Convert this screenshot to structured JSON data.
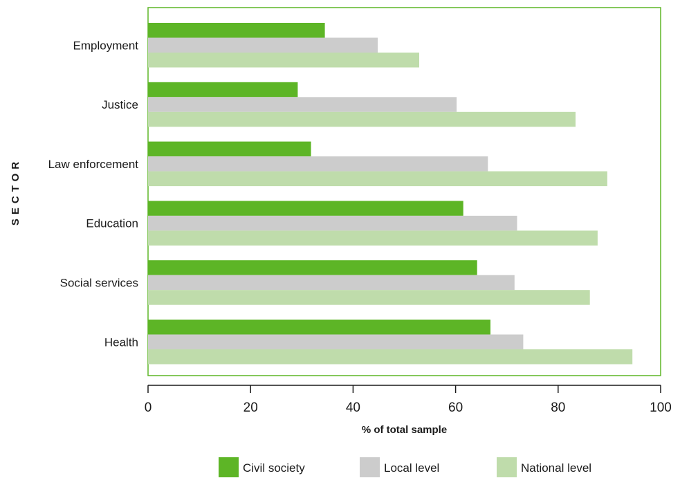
{
  "chart_data": {
    "type": "bar",
    "orientation": "horizontal",
    "categories": [
      "Employment",
      "Justice",
      "Law enforcement",
      "Education",
      "Social services",
      "Health"
    ],
    "series": [
      {
        "name": "Civil society",
        "color": "#5db526",
        "values": [
          34.5,
          29.2,
          31.8,
          61.5,
          64.2,
          66.8
        ]
      },
      {
        "name": "Local level",
        "color": "#cccccc",
        "values": [
          44.8,
          60.2,
          66.3,
          72.0,
          71.5,
          73.2
        ]
      },
      {
        "name": "National level",
        "color": "#bfdcab",
        "values": [
          52.9,
          83.4,
          89.6,
          87.7,
          86.2,
          94.5
        ]
      }
    ],
    "xlabel": "% of total sample",
    "ylabel": "SECTOR",
    "xlim": [
      0,
      100
    ],
    "xticks": [
      0,
      20,
      40,
      60,
      80,
      100
    ],
    "legend_position": "bottom",
    "frame_color": "#5db526"
  }
}
